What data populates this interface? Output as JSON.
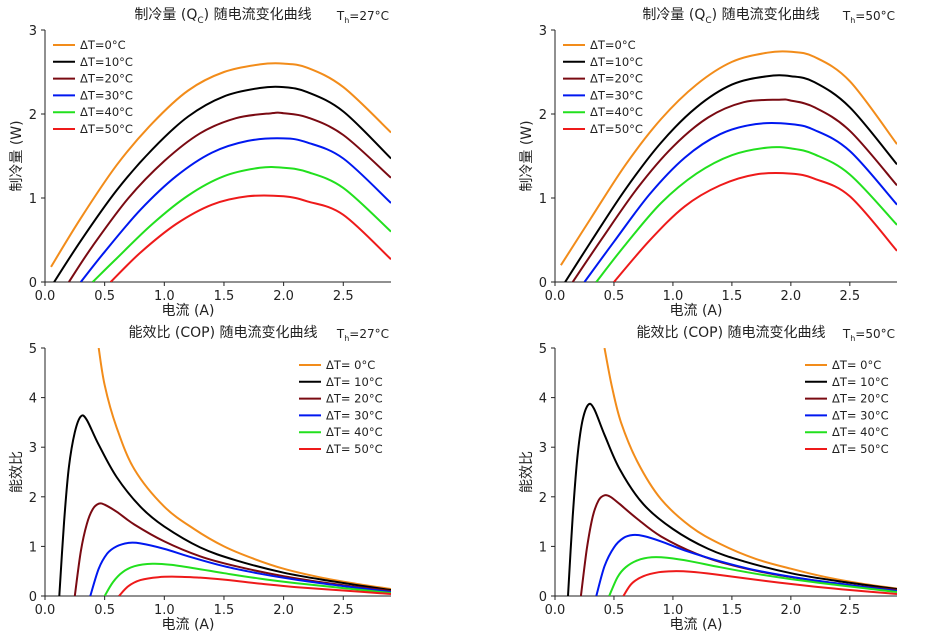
{
  "colors": {
    "axis": "#222222",
    "series": [
      "#F28C1A",
      "#000000",
      "#7A0A12",
      "#0018F0",
      "#22E01E",
      "#EE1A1A"
    ]
  },
  "chart_data": [
    {
      "type": "line",
      "title": "制冷量 (Q_C) 随电流变化曲线",
      "title_main": "制冷量 (Q",
      "title_sub": "C",
      "title_end": ") 随电流变化曲线",
      "condition_main": "T",
      "condition_sub": "h",
      "condition_end": "=27°C",
      "xlabel": "电流 (A)",
      "ylabel": "制冷量 (W)",
      "xlim": [
        0,
        2.9
      ],
      "ylim": [
        0,
        3
      ],
      "xticks": [
        "0.0",
        "0.5",
        "1.0",
        "1.5",
        "2.0",
        "2.5"
      ],
      "xtick_values": [
        0,
        0.5,
        1.0,
        1.5,
        2.0,
        2.5
      ],
      "yticks": [
        "0",
        "1",
        "2",
        "3"
      ],
      "ytick_values": [
        0,
        1,
        2,
        3
      ],
      "legend_position": "top-left",
      "series": [
        {
          "name": "ΔT=0°C",
          "x": [
            0.05,
            0.3,
            0.6,
            0.9,
            1.2,
            1.5,
            1.8,
            2.0,
            2.2,
            2.5,
            2.9
          ],
          "y": [
            0.18,
            0.76,
            1.39,
            1.89,
            2.28,
            2.5,
            2.59,
            2.6,
            2.55,
            2.32,
            1.78
          ]
        },
        {
          "name": "ΔT=10°C",
          "x": [
            0.05,
            0.3,
            0.6,
            0.9,
            1.2,
            1.5,
            1.8,
            2.0,
            2.2,
            2.5,
            2.9
          ],
          "y": [
            -0.06,
            0.49,
            1.09,
            1.58,
            1.97,
            2.21,
            2.31,
            2.32,
            2.26,
            2.03,
            1.47
          ]
        },
        {
          "name": "ΔT=20°C",
          "x": [
            0.2,
            0.4,
            0.7,
            1.0,
            1.3,
            1.6,
            1.9,
            2.0,
            2.2,
            2.5,
            2.9
          ],
          "y": [
            0.0,
            0.43,
            1.0,
            1.44,
            1.77,
            1.95,
            2.01,
            2.01,
            1.96,
            1.75,
            1.24
          ]
        },
        {
          "name": "ΔT=30°C",
          "x": [
            0.3,
            0.5,
            0.8,
            1.1,
            1.4,
            1.7,
            2.0,
            2.2,
            2.5,
            2.9
          ],
          "y": [
            0.0,
            0.36,
            0.86,
            1.26,
            1.54,
            1.68,
            1.71,
            1.66,
            1.47,
            0.94
          ]
        },
        {
          "name": "ΔT=40°C",
          "x": [
            0.4,
            0.6,
            0.9,
            1.2,
            1.5,
            1.8,
            2.0,
            2.2,
            2.5,
            2.9
          ],
          "y": [
            0.0,
            0.28,
            0.69,
            1.03,
            1.26,
            1.36,
            1.36,
            1.31,
            1.12,
            0.6
          ]
        },
        {
          "name": "ΔT=50°C",
          "x": [
            0.55,
            0.8,
            1.1,
            1.4,
            1.7,
            2.0,
            2.2,
            2.5,
            2.9
          ],
          "y": [
            0.0,
            0.35,
            0.69,
            0.92,
            1.02,
            1.02,
            0.96,
            0.8,
            0.27
          ]
        }
      ]
    },
    {
      "type": "line",
      "title": "制冷量 (Q_C) 随电流变化曲线",
      "title_main": "制冷量 (Q",
      "title_sub": "C",
      "title_end": ") 随电流变化曲线",
      "condition_main": "T",
      "condition_sub": "h",
      "condition_end": "=50°C",
      "xlabel": "电流 (A)",
      "ylabel": "制冷量 (W)",
      "xlim": [
        0,
        2.9
      ],
      "ylim": [
        0,
        3
      ],
      "xticks": [
        "0.0",
        "0.5",
        "1.0",
        "1.5",
        "2.0",
        "2.5"
      ],
      "xtick_values": [
        0,
        0.5,
        1.0,
        1.5,
        2.0,
        2.5
      ],
      "yticks": [
        "0",
        "1",
        "2",
        "3"
      ],
      "ytick_values": [
        0,
        1,
        2,
        3
      ],
      "legend_position": "top-left",
      "series": [
        {
          "name": "ΔT=0°C",
          "x": [
            0.05,
            0.3,
            0.6,
            0.9,
            1.2,
            1.5,
            1.8,
            2.0,
            2.2,
            2.5,
            2.9
          ],
          "y": [
            0.2,
            0.75,
            1.4,
            1.94,
            2.35,
            2.62,
            2.73,
            2.74,
            2.68,
            2.39,
            1.64
          ]
        },
        {
          "name": "ΔT=10°C",
          "x": [
            0.05,
            0.3,
            0.6,
            0.9,
            1.2,
            1.5,
            1.8,
            2.0,
            2.2,
            2.5,
            2.9
          ],
          "y": [
            -0.08,
            0.47,
            1.11,
            1.66,
            2.08,
            2.35,
            2.45,
            2.45,
            2.38,
            2.08,
            1.4
          ]
        },
        {
          "name": "ΔT=20°C",
          "x": [
            0.15,
            0.4,
            0.7,
            1.0,
            1.3,
            1.6,
            1.9,
            2.0,
            2.2,
            2.5,
            2.9
          ],
          "y": [
            0.0,
            0.52,
            1.12,
            1.61,
            1.96,
            2.14,
            2.17,
            2.16,
            2.08,
            1.8,
            1.15
          ]
        },
        {
          "name": "ΔT=30°C",
          "x": [
            0.25,
            0.5,
            0.8,
            1.1,
            1.4,
            1.7,
            2.0,
            2.2,
            2.5,
            2.9
          ],
          "y": [
            0.0,
            0.48,
            1.04,
            1.48,
            1.76,
            1.88,
            1.88,
            1.81,
            1.56,
            0.92
          ]
        },
        {
          "name": "ΔT=40°C",
          "x": [
            0.35,
            0.6,
            0.9,
            1.2,
            1.5,
            1.8,
            2.0,
            2.2,
            2.5,
            2.9
          ],
          "y": [
            0.0,
            0.45,
            0.94,
            1.29,
            1.51,
            1.6,
            1.59,
            1.52,
            1.28,
            0.68
          ]
        },
        {
          "name": "ΔT=50°C",
          "x": [
            0.5,
            0.8,
            1.1,
            1.4,
            1.7,
            2.0,
            2.2,
            2.5,
            2.9
          ],
          "y": [
            0.0,
            0.49,
            0.9,
            1.15,
            1.28,
            1.29,
            1.23,
            1.02,
            0.37
          ]
        }
      ]
    },
    {
      "type": "line",
      "title": "能效比 (COP) 随电流变化曲线",
      "title_main": "能效比 (COP) 随电流变化曲线",
      "title_sub": "",
      "title_end": "",
      "condition_main": "T",
      "condition_sub": "h",
      "condition_end": "=27°C",
      "xlabel": "电流 (A)",
      "ylabel": "能效比",
      "xlim": [
        0,
        2.9
      ],
      "ylim": [
        0,
        5
      ],
      "xticks": [
        "0.0",
        "0.5",
        "1.0",
        "1.5",
        "2.0",
        "2.5"
      ],
      "xtick_values": [
        0,
        0.5,
        1.0,
        1.5,
        2.0,
        2.5
      ],
      "yticks": [
        "0",
        "1",
        "2",
        "3",
        "4",
        "5"
      ],
      "ytick_values": [
        0,
        1,
        2,
        3,
        4,
        5
      ],
      "legend_position": "top-right",
      "series": [
        {
          "name": "ΔT= 0°C",
          "x": [
            0.45,
            0.5,
            0.6,
            0.75,
            1.0,
            1.25,
            1.5,
            1.75,
            2.0,
            2.3,
            2.6,
            2.9
          ],
          "y": [
            5.0,
            4.25,
            3.4,
            2.55,
            1.8,
            1.35,
            1.0,
            0.75,
            0.55,
            0.38,
            0.25,
            0.14
          ]
        },
        {
          "name": "ΔT= 10°C",
          "x": [
            0.12,
            0.16,
            0.2,
            0.25,
            0.3,
            0.35,
            0.45,
            0.6,
            0.8,
            1.0,
            1.3,
            1.6,
            2.0,
            2.4,
            2.9
          ],
          "y": [
            0.0,
            1.5,
            2.6,
            3.3,
            3.62,
            3.55,
            3.05,
            2.4,
            1.8,
            1.4,
            0.98,
            0.72,
            0.47,
            0.3,
            0.12
          ]
        },
        {
          "name": "ΔT= 20°C",
          "x": [
            0.25,
            0.3,
            0.35,
            0.4,
            0.45,
            0.5,
            0.6,
            0.75,
            1.0,
            1.3,
            1.6,
            2.0,
            2.4,
            2.9
          ],
          "y": [
            0.0,
            0.9,
            1.45,
            1.75,
            1.86,
            1.84,
            1.7,
            1.44,
            1.1,
            0.8,
            0.6,
            0.4,
            0.25,
            0.1
          ]
        },
        {
          "name": "ΔT= 30°C",
          "x": [
            0.38,
            0.45,
            0.52,
            0.6,
            0.7,
            0.8,
            1.0,
            1.2,
            1.5,
            1.8,
            2.1,
            2.5,
            2.9
          ],
          "y": [
            0.0,
            0.55,
            0.85,
            1.0,
            1.07,
            1.06,
            0.95,
            0.8,
            0.6,
            0.45,
            0.33,
            0.2,
            0.08
          ]
        },
        {
          "name": "ΔT= 40°C",
          "x": [
            0.5,
            0.57,
            0.65,
            0.75,
            0.9,
            1.05,
            1.25,
            1.5,
            1.8,
            2.1,
            2.5,
            2.9
          ],
          "y": [
            0.0,
            0.28,
            0.48,
            0.6,
            0.65,
            0.63,
            0.56,
            0.46,
            0.35,
            0.26,
            0.16,
            0.06
          ]
        },
        {
          "name": "ΔT= 50°C",
          "x": [
            0.62,
            0.7,
            0.8,
            0.95,
            1.1,
            1.3,
            1.5,
            1.8,
            2.1,
            2.5,
            2.9
          ],
          "y": [
            0.0,
            0.2,
            0.32,
            0.38,
            0.39,
            0.37,
            0.33,
            0.25,
            0.18,
            0.11,
            0.04
          ]
        }
      ]
    },
    {
      "type": "line",
      "title": "能效比 (COP) 随电流变化曲线",
      "title_main": "能效比 (COP) 随电流变化曲线",
      "title_sub": "",
      "title_end": "",
      "condition_main": "T",
      "condition_sub": "h",
      "condition_end": "=50°C",
      "xlabel": "电流 (A)",
      "ylabel": "能效比",
      "xlim": [
        0,
        2.9
      ],
      "ylim": [
        0,
        5
      ],
      "xticks": [
        "0.0",
        "0.5",
        "1.0",
        "1.5",
        "2.0",
        "2.5"
      ],
      "xtick_values": [
        0,
        0.5,
        1.0,
        1.5,
        2.0,
        2.5
      ],
      "yticks": [
        "0",
        "1",
        "2",
        "3",
        "4",
        "5"
      ],
      "ytick_values": [
        0,
        1,
        2,
        3,
        4,
        5
      ],
      "legend_position": "top-right",
      "series": [
        {
          "name": "ΔT= 0°C",
          "x": [
            0.42,
            0.48,
            0.56,
            0.7,
            0.9,
            1.15,
            1.4,
            1.7,
            2.0,
            2.3,
            2.6,
            2.9
          ],
          "y": [
            5.0,
            4.25,
            3.5,
            2.7,
            1.95,
            1.4,
            1.05,
            0.75,
            0.55,
            0.38,
            0.25,
            0.15
          ]
        },
        {
          "name": "ΔT= 10°C",
          "x": [
            0.11,
            0.15,
            0.19,
            0.23,
            0.28,
            0.33,
            0.42,
            0.55,
            0.75,
            1.0,
            1.3,
            1.6,
            2.0,
            2.4,
            2.9
          ],
          "y": [
            0.0,
            1.6,
            2.8,
            3.5,
            3.85,
            3.78,
            3.25,
            2.55,
            1.85,
            1.35,
            0.95,
            0.7,
            0.46,
            0.3,
            0.14
          ]
        },
        {
          "name": "ΔT= 20°C",
          "x": [
            0.22,
            0.27,
            0.32,
            0.37,
            0.42,
            0.47,
            0.55,
            0.7,
            0.9,
            1.2,
            1.5,
            1.9,
            2.4,
            2.9
          ],
          "y": [
            0.0,
            0.95,
            1.6,
            1.93,
            2.03,
            2.0,
            1.85,
            1.55,
            1.2,
            0.85,
            0.62,
            0.42,
            0.25,
            0.12
          ]
        },
        {
          "name": "ΔT= 30°C",
          "x": [
            0.35,
            0.42,
            0.5,
            0.58,
            0.66,
            0.75,
            0.9,
            1.1,
            1.4,
            1.7,
            2.1,
            2.5,
            2.9
          ],
          "y": [
            0.0,
            0.6,
            0.98,
            1.17,
            1.23,
            1.21,
            1.1,
            0.92,
            0.7,
            0.52,
            0.35,
            0.22,
            0.1
          ]
        },
        {
          "name": "ΔT= 40°C",
          "x": [
            0.46,
            0.53,
            0.6,
            0.7,
            0.82,
            0.95,
            1.15,
            1.4,
            1.7,
            2.0,
            2.4,
            2.9
          ],
          "y": [
            0.0,
            0.38,
            0.58,
            0.72,
            0.78,
            0.77,
            0.7,
            0.58,
            0.45,
            0.34,
            0.22,
            0.08
          ]
        },
        {
          "name": "ΔT= 50°C",
          "x": [
            0.58,
            0.65,
            0.75,
            0.88,
            1.0,
            1.15,
            1.35,
            1.6,
            1.9,
            2.2,
            2.5,
            2.9
          ],
          "y": [
            0.0,
            0.25,
            0.4,
            0.48,
            0.5,
            0.49,
            0.44,
            0.36,
            0.27,
            0.19,
            0.12,
            0.04
          ]
        }
      ]
    }
  ]
}
